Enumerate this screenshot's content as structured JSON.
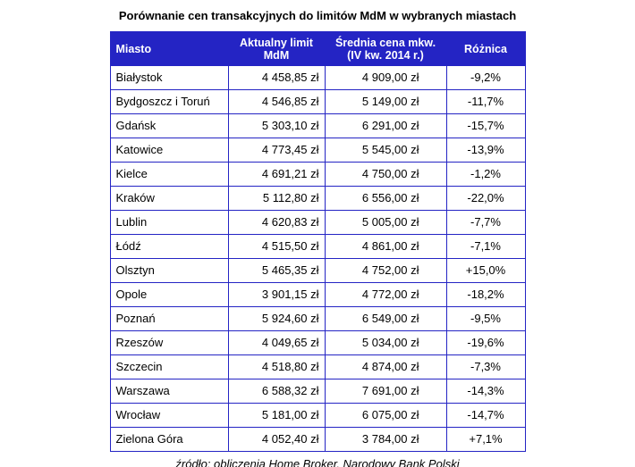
{
  "title": "Porównanie cen transakcyjnych do limitów MdM w wybranych miastach",
  "footer": "źródło: obliczenia Home Broker, Narodowy Bank Polski",
  "colors": {
    "header_bg": "#2424c4",
    "header_text": "#ffffff",
    "border": "#2424c4",
    "body_text": "#000000"
  },
  "chart_data": {
    "type": "table",
    "title": "Porównanie cen transakcyjnych do limitów MdM w wybranych miastach",
    "columns": [
      "Miasto",
      "Aktualny limit MdM",
      "Średnia cena mkw. (IV kw. 2014 r.)",
      "Różnica"
    ],
    "rows": [
      [
        "Białystok",
        "4 458,85 zł",
        "4 909,00 zł",
        "-9,2%"
      ],
      [
        "Bydgoszcz i Toruń",
        "4 546,85 zł",
        "5 149,00 zł",
        "-11,7%"
      ],
      [
        "Gdańsk",
        "5 303,10 zł",
        "6 291,00 zł",
        "-15,7%"
      ],
      [
        "Katowice",
        "4 773,45 zł",
        "5 545,00 zł",
        "-13,9%"
      ],
      [
        "Kielce",
        "4 691,21 zł",
        "4 750,00 zł",
        "-1,2%"
      ],
      [
        "Kraków",
        "5 112,80 zł",
        "6 556,00 zł",
        "-22,0%"
      ],
      [
        "Lublin",
        "4 620,83 zł",
        "5 005,00 zł",
        "-7,7%"
      ],
      [
        "Łódź",
        "4 515,50 zł",
        "4 861,00 zł",
        "-7,1%"
      ],
      [
        "Olsztyn",
        "5 465,35 zł",
        "4 752,00 zł",
        "+15,0%"
      ],
      [
        "Opole",
        "3 901,15 zł",
        "4 772,00 zł",
        "-18,2%"
      ],
      [
        "Poznań",
        "5 924,60 zł",
        "6 549,00 zł",
        "-9,5%"
      ],
      [
        "Rzeszów",
        "4 049,65 zł",
        "5 034,00 zł",
        "-19,6%"
      ],
      [
        "Szczecin",
        "4 518,80 zł",
        "4 874,00 zł",
        "-7,3%"
      ],
      [
        "Warszawa",
        "6 588,32 zł",
        "7 691,00 zł",
        "-14,3%"
      ],
      [
        "Wrocław",
        "5 181,00 zł",
        "6 075,00 zł",
        "-14,7%"
      ],
      [
        "Zielona Góra",
        "4 052,40 zł",
        "3 784,00 zł",
        "+7,1%"
      ]
    ]
  }
}
